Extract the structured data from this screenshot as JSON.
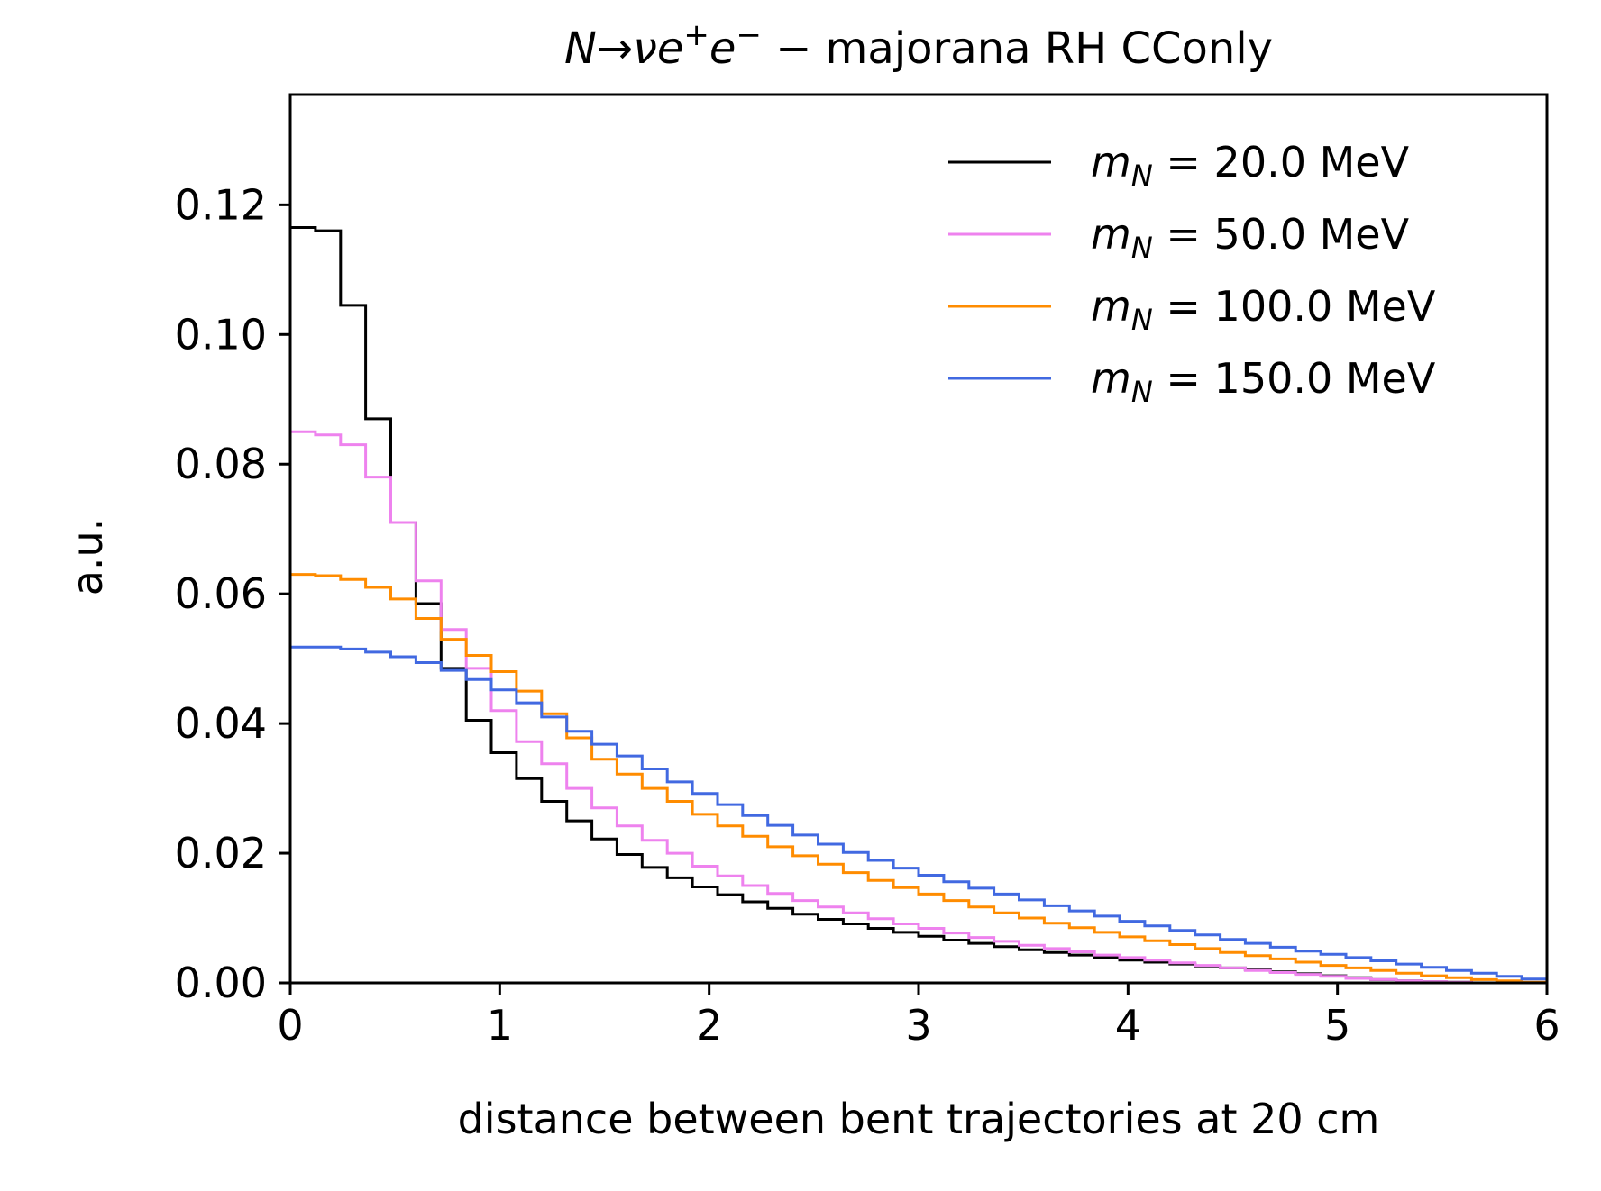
{
  "chart_data": {
    "type": "line",
    "title_parts": {
      "lead": "N→νe",
      "sup1": "+",
      "mid": "e",
      "sup2": "−",
      "tail": " − majorana RH CConly"
    },
    "xlabel": "distance between bent trajectories at 20 cm",
    "ylabel": "a.u.",
    "xlim": [
      0,
      6
    ],
    "ylim": [
      0,
      0.137
    ],
    "xticks": [
      "0",
      "1",
      "2",
      "3",
      "4",
      "5",
      "6"
    ],
    "yticks": [
      "0.00",
      "0.02",
      "0.04",
      "0.06",
      "0.08",
      "0.10",
      "0.12"
    ],
    "legend_position": "top-right",
    "bin_width": 0.12,
    "series": [
      {
        "name": "20.0 MeV",
        "color": "#000000",
        "values": [
          0.1165,
          0.116,
          0.1045,
          0.087,
          0.071,
          0.0585,
          0.0485,
          0.0405,
          0.0355,
          0.0315,
          0.028,
          0.025,
          0.0222,
          0.0198,
          0.0178,
          0.0162,
          0.0148,
          0.0136,
          0.0125,
          0.0115,
          0.0106,
          0.0098,
          0.0091,
          0.0084,
          0.0078,
          0.0072,
          0.0066,
          0.0061,
          0.0056,
          0.0051,
          0.0047,
          0.0043,
          0.0039,
          0.0035,
          0.0032,
          0.0029,
          0.0026,
          0.0023,
          0.002,
          0.0017,
          0.0014,
          0.0011,
          0.0008,
          0.0005,
          0.0003,
          0.0002,
          0.0001,
          0.0,
          0.0,
          0.0
        ]
      },
      {
        "name": "50.0 MeV",
        "color": "#ee82ee",
        "values": [
          0.085,
          0.0845,
          0.083,
          0.078,
          0.071,
          0.062,
          0.0545,
          0.0485,
          0.042,
          0.0372,
          0.0338,
          0.03,
          0.027,
          0.0242,
          0.022,
          0.02,
          0.018,
          0.0165,
          0.015,
          0.0138,
          0.0127,
          0.0117,
          0.0108,
          0.0099,
          0.0091,
          0.0084,
          0.0077,
          0.007,
          0.0064,
          0.0058,
          0.0053,
          0.0048,
          0.0043,
          0.0039,
          0.0035,
          0.0031,
          0.0027,
          0.0023,
          0.0019,
          0.0016,
          0.0013,
          0.001,
          0.0007,
          0.0005,
          0.0003,
          0.0002,
          0.0001,
          0.0,
          0.0,
          0.0
        ]
      },
      {
        "name": "100.0 MeV",
        "color": "#ff8c00",
        "values": [
          0.063,
          0.0628,
          0.0622,
          0.061,
          0.0592,
          0.0562,
          0.053,
          0.0505,
          0.048,
          0.045,
          0.0415,
          0.0378,
          0.0345,
          0.0322,
          0.03,
          0.028,
          0.026,
          0.0242,
          0.0226,
          0.021,
          0.0196,
          0.0183,
          0.017,
          0.0158,
          0.0147,
          0.0137,
          0.0127,
          0.0117,
          0.0108,
          0.01,
          0.0092,
          0.0085,
          0.0078,
          0.0071,
          0.0065,
          0.0059,
          0.0053,
          0.0047,
          0.0042,
          0.0037,
          0.0032,
          0.0027,
          0.0023,
          0.0019,
          0.0015,
          0.0011,
          0.0008,
          0.0005,
          0.0003,
          0.0001
        ]
      },
      {
        "name": "150.0 MeV",
        "color": "#4169e1",
        "values": [
          0.0518,
          0.0518,
          0.0515,
          0.051,
          0.0503,
          0.0494,
          0.0482,
          0.0468,
          0.0452,
          0.0432,
          0.041,
          0.0388,
          0.0368,
          0.035,
          0.033,
          0.031,
          0.0292,
          0.0275,
          0.0258,
          0.0243,
          0.0228,
          0.0214,
          0.0201,
          0.0189,
          0.0177,
          0.0166,
          0.0156,
          0.0146,
          0.0137,
          0.0128,
          0.0119,
          0.0111,
          0.0103,
          0.0095,
          0.0088,
          0.0081,
          0.0074,
          0.0067,
          0.0061,
          0.0055,
          0.0049,
          0.0044,
          0.0039,
          0.0034,
          0.0029,
          0.0024,
          0.0019,
          0.0015,
          0.001,
          0.0006
        ]
      }
    ]
  }
}
